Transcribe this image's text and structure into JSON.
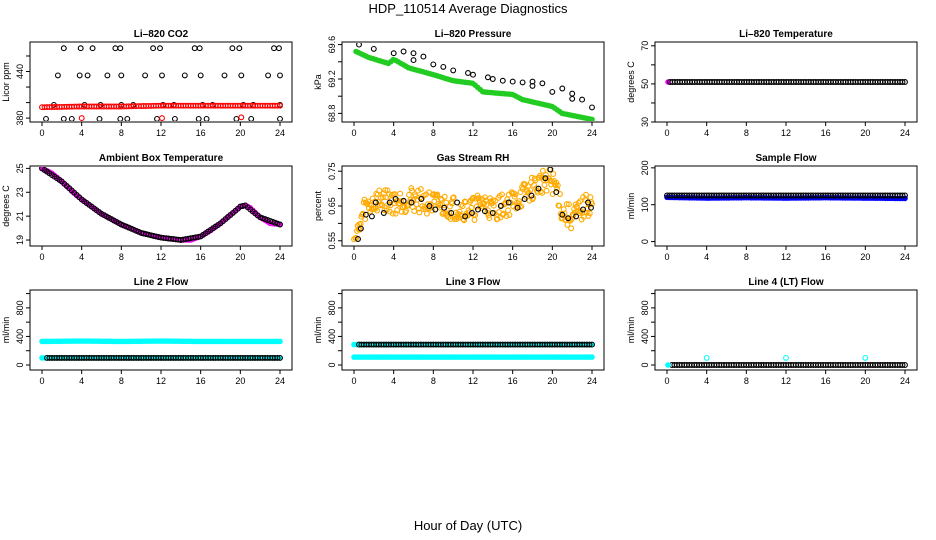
{
  "figure": {
    "title": "HDP_110514  Average Diagnostics",
    "xlabel": "Hour of Day (UTC)"
  },
  "colors": {
    "black": "#000000",
    "red": "#ff0000",
    "green": "#22cc22",
    "magenta": "#ff00ff",
    "orange": "#ffaa00",
    "blue": "#0000ff",
    "cyan": "#00ffff"
  },
  "chart_data": [
    {
      "type": "scatter",
      "title": "Li–820 CO2",
      "ylabel": "Licor ppm",
      "xlim": [
        0,
        24
      ],
      "ylim": [
        375,
        478
      ],
      "xticks": [
        0,
        4,
        8,
        12,
        16,
        20,
        24
      ],
      "xtick_labels": [
        "0",
        "4",
        "8",
        "12",
        "16",
        "20",
        "24"
      ],
      "yticks": [
        380,
        400,
        420,
        440,
        460
      ],
      "ytick_labels": [
        "380",
        "",
        "",
        "440",
        ""
      ],
      "series": [
        {
          "name": "co2-high",
          "color": "black",
          "marker": "circle",
          "kind": "points",
          "x": [
            2.2,
            3.9,
            5.1,
            7.4,
            7.9,
            11.2,
            11.9,
            15.4,
            15.9,
            19.2,
            19.9,
            23.4,
            23.9
          ],
          "y": [
            470,
            470,
            470,
            470,
            470,
            470,
            470,
            470,
            470,
            470,
            470,
            470,
            470
          ]
        },
        {
          "name": "co2-mid",
          "color": "black",
          "marker": "circle",
          "kind": "points",
          "x": [
            1.6,
            3.8,
            4.6,
            6.6,
            8.0,
            10.4,
            12.1,
            14.4,
            16.0,
            18.4,
            20.1,
            22.8,
            24.0
          ],
          "y": [
            435,
            435,
            435,
            435,
            435,
            435,
            435,
            435,
            435,
            435,
            435,
            435,
            435
          ]
        },
        {
          "name": "co2-low-black",
          "color": "black",
          "marker": "circle",
          "kind": "points",
          "x": [
            1.2,
            4.3,
            5.9,
            8.0,
            9.2,
            12.2,
            13.3,
            16.2,
            17.2,
            20.3,
            21.3,
            24.0
          ],
          "y": [
            397,
            397,
            397,
            397,
            397,
            397,
            397,
            397,
            397,
            397,
            397,
            397
          ]
        },
        {
          "name": "co2-bottom",
          "color": "black",
          "marker": "circle",
          "kind": "points",
          "x": [
            0.4,
            2.2,
            3.0,
            5.8,
            7.9,
            8.6,
            11.6,
            13.4,
            15.8,
            16.6,
            19.6,
            21.1,
            24.0
          ],
          "y": [
            379,
            379,
            379,
            379,
            379,
            379,
            379,
            379,
            379,
            379,
            379,
            379,
            379
          ]
        },
        {
          "name": "co2-red-band",
          "color": "red",
          "marker": "circle",
          "kind": "band",
          "x": [
            0,
            4,
            8,
            12,
            16,
            20,
            24
          ],
          "y": [
            394,
            395,
            395,
            396,
            396,
            396,
            396
          ]
        },
        {
          "name": "co2-red-outliers",
          "color": "red",
          "marker": "circle",
          "kind": "points",
          "x": [
            4.0,
            12.1,
            20.1
          ],
          "y": [
            380,
            380,
            381
          ]
        }
      ]
    },
    {
      "type": "scatter",
      "title": "Li–820 Pressure",
      "ylabel": "kPa",
      "xlim": [
        0,
        24
      ],
      "ylim": [
        68.7,
        69.63
      ],
      "xticks": [
        0,
        4,
        8,
        12,
        16,
        20,
        24
      ],
      "xtick_labels": [
        "0",
        "4",
        "8",
        "12",
        "16",
        "20",
        "24"
      ],
      "yticks": [
        68.8,
        69.0,
        69.2,
        69.4,
        69.6
      ],
      "ytick_labels": [
        "68.8",
        "",
        "69.2",
        "",
        "69.6"
      ],
      "series": [
        {
          "name": "pressure-green",
          "color": "green",
          "marker": "filled",
          "kind": "band",
          "x": [
            0.2,
            1.5,
            3.5,
            4.0,
            5.5,
            8,
            10,
            12,
            13,
            16,
            17,
            20,
            21,
            24
          ],
          "y": [
            69.52,
            69.45,
            69.38,
            69.43,
            69.33,
            69.25,
            69.18,
            69.15,
            69.05,
            69.02,
            68.96,
            68.88,
            68.8,
            68.73
          ]
        },
        {
          "name": "pressure-black",
          "color": "black",
          "marker": "circle",
          "kind": "points",
          "x": [
            0.5,
            2,
            4,
            6,
            8,
            10,
            11.5,
            12,
            13.5,
            16,
            18,
            20,
            22,
            24
          ],
          "y": [
            69.6,
            69.55,
            69.5,
            69.42,
            69.37,
            69.3,
            69.27,
            69.25,
            69.22,
            69.17,
            69.12,
            69.05,
            68.97,
            68.87
          ]
        },
        {
          "name": "pressure-white",
          "color": "black",
          "marker": "circle",
          "kind": "points",
          "x": [
            5,
            6,
            7,
            9,
            14,
            15,
            17,
            18,
            19,
            21,
            22,
            23
          ],
          "y": [
            69.52,
            69.5,
            69.46,
            69.34,
            69.2,
            69.18,
            69.16,
            69.17,
            69.15,
            69.09,
            69.03,
            68.96
          ]
        }
      ]
    },
    {
      "type": "scatter",
      "title": "Li–820 Temperature",
      "ylabel": "degrees C",
      "xlim": [
        0,
        24
      ],
      "ylim": [
        30,
        72
      ],
      "xticks": [
        0,
        4,
        8,
        12,
        16,
        20,
        24
      ],
      "xtick_labels": [
        "0",
        "4",
        "8",
        "12",
        "16",
        "20",
        "24"
      ],
      "yticks": [
        30,
        40,
        50,
        60,
        70
      ],
      "ytick_labels": [
        "30",
        "",
        "50",
        "",
        "70"
      ],
      "series": [
        {
          "name": "li-temp-magenta",
          "color": "magenta",
          "marker": "filled",
          "kind": "points",
          "x": [
            0.1
          ],
          "y": [
            51
          ]
        },
        {
          "name": "li-temp-black",
          "color": "black",
          "marker": "circle",
          "kind": "band",
          "x": [
            0.3,
            24
          ],
          "y": [
            51,
            51
          ]
        }
      ]
    },
    {
      "type": "scatter",
      "title": "Ambient Box Temperature",
      "ylabel": "degrees C",
      "xlim": [
        0,
        24
      ],
      "ylim": [
        18.5,
        25.2
      ],
      "xticks": [
        0,
        4,
        8,
        12,
        16,
        20,
        24
      ],
      "xtick_labels": [
        "0",
        "4",
        "8",
        "12",
        "16",
        "20",
        "24"
      ],
      "yticks": [
        19,
        21,
        23,
        25
      ],
      "ytick_labels": [
        "19",
        "21",
        "23",
        "25"
      ],
      "series": [
        {
          "name": "box-temp-magenta",
          "color": "magenta",
          "marker": "filled",
          "kind": "band",
          "x": [
            0,
            1,
            2,
            3,
            4,
            6,
            8,
            10,
            12,
            14,
            15,
            16,
            17,
            18,
            19,
            20,
            20.5,
            21,
            22,
            23,
            24
          ],
          "y": [
            25.0,
            24.6,
            23.9,
            23.1,
            22.4,
            21.2,
            20.3,
            19.6,
            19.2,
            19.0,
            19.0,
            19.3,
            19.8,
            20.4,
            21.1,
            21.8,
            21.9,
            21.7,
            20.9,
            20.4,
            20.3
          ]
        },
        {
          "name": "box-temp-black",
          "color": "black",
          "marker": "circle",
          "kind": "band",
          "x": [
            0,
            2,
            4,
            6,
            8,
            10,
            12,
            14,
            16,
            18,
            20,
            20.5,
            22,
            24
          ],
          "y": [
            25.0,
            23.9,
            22.4,
            21.2,
            20.3,
            19.6,
            19.2,
            19.0,
            19.3,
            20.4,
            21.8,
            21.9,
            20.9,
            20.3
          ]
        }
      ]
    },
    {
      "type": "scatter",
      "title": "Gas Stream RH",
      "ylabel": "percent",
      "xlim": [
        0,
        24
      ],
      "ylim": [
        0.535,
        0.765
      ],
      "xticks": [
        0,
        4,
        8,
        12,
        16,
        20,
        24
      ],
      "xtick_labels": [
        "0",
        "4",
        "8",
        "12",
        "16",
        "20",
        "24"
      ],
      "yticks": [
        0.55,
        0.6,
        0.65,
        0.7,
        0.75
      ],
      "ytick_labels": [
        "0.55",
        "",
        "0.65",
        "",
        "0.75"
      ],
      "series": [
        {
          "name": "rh-orange",
          "color": "orange",
          "marker": "circle",
          "kind": "noisy",
          "x": [
            0,
            0.5,
            1,
            2,
            3,
            4,
            6,
            8,
            10,
            12,
            13,
            14,
            16,
            17,
            18,
            19,
            19.5,
            20.5,
            21,
            22,
            23,
            24
          ],
          "y": [
            0.55,
            0.58,
            0.64,
            0.66,
            0.67,
            0.66,
            0.67,
            0.655,
            0.645,
            0.64,
            0.66,
            0.64,
            0.66,
            0.68,
            0.7,
            0.72,
            0.73,
            0.7,
            0.63,
            0.615,
            0.64,
            0.66
          ]
        },
        {
          "name": "rh-black",
          "color": "black",
          "marker": "circle",
          "kind": "points",
          "x": [
            0.4,
            0.7,
            1.2,
            1.8,
            2.2,
            3.0,
            3.6,
            4.2,
            5.0,
            5.8,
            6.8,
            7.6,
            8.2,
            9.1,
            9.8,
            10.4,
            11.2,
            11.9,
            12.5,
            13.2,
            14.0,
            14.8,
            15.6,
            16.5,
            17.2,
            17.9,
            18.6,
            19.3,
            19.8,
            20.4,
            21.0,
            21.6,
            22.4,
            23.1,
            23.6,
            23.9
          ],
          "y": [
            0.555,
            0.585,
            0.625,
            0.62,
            0.66,
            0.63,
            0.66,
            0.67,
            0.665,
            0.66,
            0.67,
            0.65,
            0.64,
            0.645,
            0.63,
            0.66,
            0.62,
            0.63,
            0.64,
            0.635,
            0.63,
            0.65,
            0.66,
            0.645,
            0.67,
            0.68,
            0.7,
            0.73,
            0.755,
            0.69,
            0.625,
            0.615,
            0.62,
            0.64,
            0.66,
            0.645
          ]
        }
      ]
    },
    {
      "type": "scatter",
      "title": "Sample Flow",
      "ylabel": "ml/min",
      "xlim": [
        0,
        24
      ],
      "ylim": [
        -12,
        205
      ],
      "xticks": [
        0,
        4,
        8,
        12,
        16,
        20,
        24
      ],
      "xtick_labels": [
        "0",
        "4",
        "8",
        "12",
        "16",
        "20",
        "24"
      ],
      "yticks": [
        0,
        100,
        200
      ],
      "ytick_labels": [
        "0",
        "100",
        "200"
      ],
      "series": [
        {
          "name": "sample-flow-blue",
          "color": "blue",
          "marker": "filled",
          "kind": "band",
          "x": [
            0,
            4,
            8,
            12,
            16,
            20,
            24
          ],
          "y": [
            120,
            118,
            119,
            118,
            119,
            118,
            117
          ]
        },
        {
          "name": "sample-flow-black",
          "color": "black",
          "marker": "circle",
          "kind": "band",
          "x": [
            0,
            24
          ],
          "y": [
            125,
            125
          ]
        }
      ]
    },
    {
      "type": "scatter",
      "title": "Line 2 Flow",
      "ylabel": "ml/min",
      "xlim": [
        0,
        24
      ],
      "ylim": [
        -70,
        1050
      ],
      "xticks": [
        0,
        4,
        8,
        12,
        16,
        20,
        24
      ],
      "xtick_labels": [
        "0",
        "4",
        "8",
        "12",
        "16",
        "20",
        "24"
      ],
      "yticks": [
        0,
        200,
        400,
        600,
        800,
        1000
      ],
      "ytick_labels": [
        "0",
        "",
        "400",
        "",
        "800",
        ""
      ],
      "series": [
        {
          "name": "line2-cyan-upper",
          "color": "cyan",
          "marker": "filled",
          "kind": "band",
          "x": [
            0,
            4,
            8,
            12,
            16,
            20,
            24
          ],
          "y": [
            330,
            335,
            330,
            335,
            330,
            330,
            330
          ]
        },
        {
          "name": "line2-cyan-lower",
          "color": "cyan",
          "marker": "filled",
          "kind": "band",
          "x": [
            0,
            24
          ],
          "y": [
            100,
            100
          ]
        },
        {
          "name": "line2-black",
          "color": "black",
          "marker": "circle",
          "kind": "band",
          "x": [
            0.5,
            24
          ],
          "y": [
            100,
            100
          ]
        }
      ]
    },
    {
      "type": "scatter",
      "title": "Line 3 Flow",
      "ylabel": "ml/min",
      "xlim": [
        0,
        24
      ],
      "ylim": [
        -70,
        1050
      ],
      "xticks": [
        0,
        4,
        8,
        12,
        16,
        20,
        24
      ],
      "xtick_labels": [
        "0",
        "4",
        "8",
        "12",
        "16",
        "20",
        "24"
      ],
      "yticks": [
        0,
        200,
        400,
        600,
        800,
        1000
      ],
      "ytick_labels": [
        "0",
        "",
        "400",
        "",
        "800",
        ""
      ],
      "series": [
        {
          "name": "line3-cyan-lower",
          "color": "cyan",
          "marker": "filled",
          "kind": "band",
          "x": [
            0,
            24
          ],
          "y": [
            110,
            110
          ]
        },
        {
          "name": "line3-cyan-upper",
          "color": "cyan",
          "marker": "filled",
          "kind": "band",
          "x": [
            0,
            24
          ],
          "y": [
            285,
            285
          ]
        },
        {
          "name": "line3-black",
          "color": "black",
          "marker": "circle",
          "kind": "band",
          "x": [
            0.5,
            24
          ],
          "y": [
            285,
            285
          ]
        }
      ]
    },
    {
      "type": "scatter",
      "title": "Line 4 (LT) Flow",
      "ylabel": "ml/min",
      "xlim": [
        0,
        24
      ],
      "ylim": [
        -70,
        1050
      ],
      "xticks": [
        0,
        4,
        8,
        12,
        16,
        20,
        24
      ],
      "xtick_labels": [
        "0",
        "4",
        "8",
        "12",
        "16",
        "20",
        "24"
      ],
      "yticks": [
        0,
        200,
        400,
        600,
        800,
        1000
      ],
      "ytick_labels": [
        "0",
        "",
        "400",
        "",
        "800",
        ""
      ],
      "series": [
        {
          "name": "line4-black",
          "color": "black",
          "marker": "circle",
          "kind": "band",
          "x": [
            0.5,
            24
          ],
          "y": [
            0,
            0
          ]
        },
        {
          "name": "line4-cyan-base",
          "color": "cyan",
          "marker": "filled",
          "kind": "points",
          "x": [
            0.1
          ],
          "y": [
            0
          ]
        },
        {
          "name": "line4-cyan-spikes",
          "color": "cyan",
          "marker": "circle",
          "kind": "points",
          "x": [
            4.0,
            12.0,
            20.0
          ],
          "y": [
            100,
            100,
            100
          ]
        }
      ]
    }
  ]
}
